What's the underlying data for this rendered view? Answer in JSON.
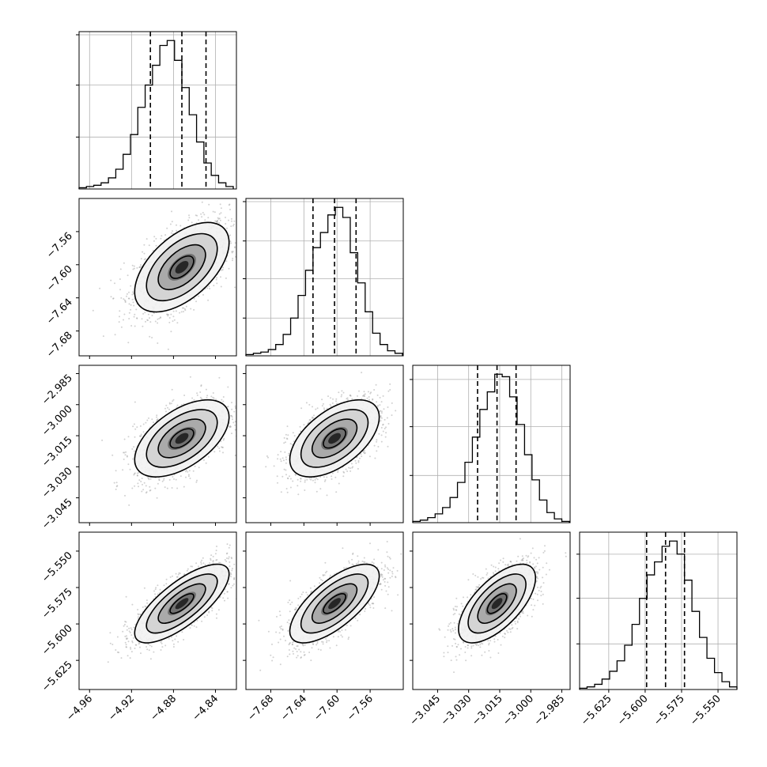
{
  "figure": {
    "colors": {
      "line": "#000000",
      "grid": "#b0b0b0",
      "points": "#9a9a9a",
      "frame": "#000000"
    },
    "grid": true
  },
  "chart_data": [
    {
      "type": "histogram",
      "row": 0,
      "col": 0,
      "parameter_index": 0,
      "xlim": [
        -4.97,
        -4.82
      ],
      "bins": [
        -4.97,
        -4.963,
        -4.956,
        -4.949,
        -4.942,
        -4.935,
        -4.928,
        -4.921,
        -4.914,
        -4.907,
        -4.9,
        -4.893,
        -4.886,
        -4.879,
        -4.872,
        -4.865,
        -4.858,
        -4.851,
        -4.844,
        -4.837,
        -4.83,
        -4.823
      ],
      "counts": [
        1,
        2,
        3,
        5,
        9,
        16,
        28,
        44,
        66,
        84,
        100,
        116,
        120,
        104,
        82,
        60,
        38,
        21,
        11,
        5,
        2
      ],
      "quantiles": [
        -4.902,
        -4.872,
        -4.849
      ],
      "y_grid_fractions": [
        0.33,
        0.66,
        0.98
      ]
    },
    {
      "type": "histogram",
      "row": 1,
      "col": 1,
      "parameter_index": 1,
      "xlim": [
        -7.71,
        -7.52
      ],
      "bins": [
        -7.71,
        -7.701,
        -7.692,
        -7.683,
        -7.674,
        -7.665,
        -7.656,
        -7.647,
        -7.638,
        -7.629,
        -7.62,
        -7.611,
        -7.602,
        -7.593,
        -7.584,
        -7.575,
        -7.566,
        -7.557,
        -7.548,
        -7.539,
        -7.53,
        -7.521
      ],
      "counts": [
        1,
        2,
        3,
        5,
        9,
        17,
        30,
        48,
        68,
        86,
        98,
        112,
        118,
        110,
        82,
        58,
        35,
        18,
        9,
        4,
        2
      ],
      "quantiles": [
        -7.629,
        -7.603,
        -7.577
      ],
      "y_grid_fractions": [
        0.24,
        0.49,
        0.73,
        0.98
      ]
    },
    {
      "type": "histogram",
      "row": 2,
      "col": 2,
      "parameter_index": 2,
      "xlim": [
        -3.057,
        -2.981
      ],
      "bins": [
        -3.057,
        -3.0534,
        -3.0498,
        -3.0462,
        -3.0426,
        -3.039,
        -3.0354,
        -3.0318,
        -3.0282,
        -3.0246,
        -3.021,
        -3.0174,
        -3.0138,
        -3.0102,
        -3.0066,
        -3.003,
        -2.9994,
        -2.9958,
        -2.9922,
        -2.9886,
        -2.985,
        -2.9814
      ],
      "counts": [
        1,
        2,
        4,
        7,
        12,
        20,
        32,
        48,
        68,
        90,
        104,
        118,
        116,
        100,
        78,
        54,
        34,
        18,
        8,
        3,
        1
      ],
      "quantiles": [
        -3.0257,
        -3.0163,
        -3.0071
      ],
      "y_grid_fractions": [
        0.3,
        0.61,
        0.91
      ]
    },
    {
      "type": "histogram",
      "row": 3,
      "col": 3,
      "parameter_index": 3,
      "xlim": [
        -5.645,
        -5.537
      ],
      "bins": [
        -5.645,
        -5.6399,
        -5.6347,
        -5.6296,
        -5.6244,
        -5.6193,
        -5.6141,
        -5.609,
        -5.6039,
        -5.5987,
        -5.5936,
        -5.5884,
        -5.5833,
        -5.5781,
        -5.573,
        -5.5679,
        -5.5627,
        -5.5576,
        -5.5524,
        -5.5473,
        -5.5421,
        -5.537
      ],
      "counts": [
        1,
        2,
        4,
        8,
        14,
        22,
        34,
        50,
        70,
        88,
        98,
        110,
        114,
        104,
        84,
        60,
        40,
        24,
        13,
        6,
        2
      ],
      "quantiles": [
        -5.599,
        -5.586,
        -5.573
      ],
      "y_grid_fractions": [
        0.29,
        0.58,
        0.86
      ]
    },
    {
      "type": "scatter_density",
      "row": 1,
      "col": 0,
      "x_param": 0,
      "y_param": 1,
      "xlim": [
        -4.97,
        -4.82
      ],
      "ylim": [
        -7.71,
        -7.52
      ],
      "correlation": 0.55,
      "n_points": 1700
    },
    {
      "type": "scatter_density",
      "row": 2,
      "col": 0,
      "x_param": 0,
      "y_param": 2,
      "xlim": [
        -4.97,
        -4.82
      ],
      "ylim": [
        -3.057,
        -2.981
      ],
      "correlation": 0.55,
      "n_points": 1700
    },
    {
      "type": "scatter_density",
      "row": 2,
      "col": 1,
      "x_param": 1,
      "y_param": 2,
      "xlim": [
        -7.71,
        -7.52
      ],
      "ylim": [
        -3.057,
        -2.981
      ],
      "correlation": 0.55,
      "n_points": 1700
    },
    {
      "type": "scatter_density",
      "row": 3,
      "col": 0,
      "x_param": 0,
      "y_param": 3,
      "xlim": [
        -4.97,
        -4.82
      ],
      "ylim": [
        -5.645,
        -5.537
      ],
      "correlation": 0.75,
      "n_points": 1700
    },
    {
      "type": "scatter_density",
      "row": 3,
      "col": 1,
      "x_param": 1,
      "y_param": 3,
      "xlim": [
        -7.71,
        -7.52
      ],
      "ylim": [
        -5.645,
        -5.537
      ],
      "correlation": 0.7,
      "n_points": 1700
    },
    {
      "type": "scatter_density",
      "row": 3,
      "col": 2,
      "x_param": 2,
      "y_param": 3,
      "xlim": [
        -3.057,
        -2.981
      ],
      "ylim": [
        -5.645,
        -5.537
      ],
      "correlation": 0.65,
      "n_points": 1700
    }
  ],
  "parameters": [
    {
      "mean": -4.872,
      "sigma": 0.0225,
      "ticks": [
        -4.96,
        -4.92,
        -4.88,
        -4.84
      ],
      "tick_labels": [
        "−4.96",
        "−4.92",
        "−4.88",
        "−4.84"
      ]
    },
    {
      "mean": -7.603,
      "sigma": 0.027,
      "ticks": [
        -7.68,
        -7.64,
        -7.6,
        -7.56
      ],
      "tick_labels": [
        "−7.68",
        "−7.64",
        "−7.60",
        "−7.56"
      ]
    },
    {
      "mean": -3.0163,
      "sigma": 0.0093,
      "ticks": [
        -3.045,
        -3.03,
        -3.015,
        -3.0,
        -2.985
      ],
      "tick_labels": [
        "−3.045",
        "−3.030",
        "−3.015",
        "−3.000",
        "−2.985"
      ]
    },
    {
      "mean": -5.586,
      "sigma": 0.0135,
      "ticks": [
        -5.625,
        -5.6,
        -5.575,
        -5.55
      ],
      "tick_labels": [
        "−5.625",
        "−5.600",
        "−5.575",
        "−5.550"
      ]
    }
  ]
}
